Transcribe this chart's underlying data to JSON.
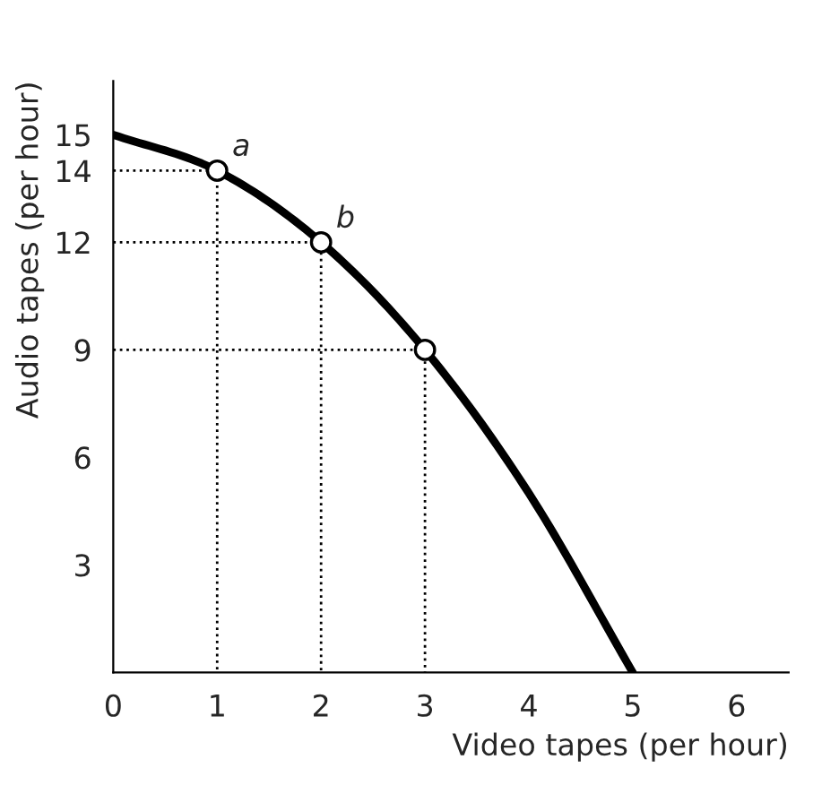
{
  "chart_data": {
    "type": "line",
    "xlabel": "Video tapes (per hour)",
    "ylabel": "Audio tapes (per hour)",
    "xlim": [
      0,
      6.5
    ],
    "ylim": [
      0,
      16.5
    ],
    "xticks": [
      0,
      1,
      2,
      3,
      4,
      5,
      6
    ],
    "yticks": [
      3,
      6,
      9,
      12,
      14,
      15
    ],
    "grid": false,
    "legend": false,
    "series": [
      {
        "type": "line",
        "color": "#000000",
        "line_style": "dotted",
        "x": [
          0,
          1,
          1
        ],
        "values": [
          14,
          14,
          0
        ]
      },
      {
        "type": "line",
        "color": "#000000",
        "line_style": "dotted",
        "x": [
          0,
          2,
          2
        ],
        "values": [
          12,
          12,
          0
        ]
      },
      {
        "type": "line",
        "color": "#000000",
        "line_style": "dotted",
        "x": [
          0,
          3,
          3
        ],
        "values": [
          9,
          9,
          0
        ]
      },
      {
        "color": "#000000",
        "line_style": "solid",
        "x": [
          0,
          1,
          2,
          3,
          4,
          5
        ],
        "values": [
          15,
          14,
          12,
          9,
          5,
          0
        ]
      },
      {
        "type": "scatter",
        "color": "#000000",
        "marker": "circle",
        "x": [
          1,
          2,
          3
        ],
        "values": [
          14,
          12,
          9
        ]
      }
    ],
    "annotations": [
      {
        "text": "a",
        "x": 1,
        "y": 14
      },
      {
        "text": "b",
        "x": 2,
        "y": 12
      }
    ]
  }
}
